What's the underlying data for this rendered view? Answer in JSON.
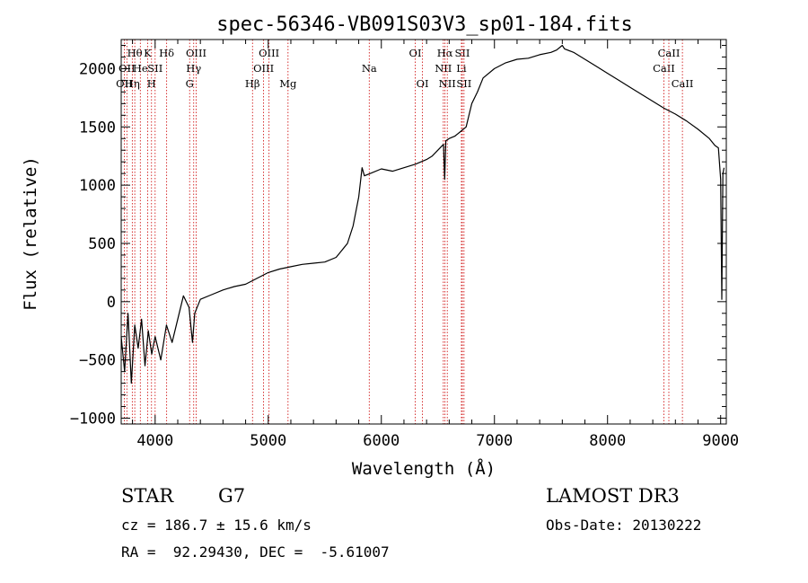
{
  "chart_data": {
    "type": "line",
    "title": "spec-56346-VB091S03V3_sp01-184.fits",
    "xlabel": "Wavelength (Å)",
    "ylabel": "Flux (relative)",
    "xlim": [
      3700,
      9050
    ],
    "ylim": [
      -1050,
      2250
    ],
    "xticks": [
      4000,
      5000,
      6000,
      7000,
      8000,
      9000
    ],
    "xtick_labels": [
      "4000",
      "5000",
      "6000",
      "7000",
      "8000",
      "9000"
    ],
    "yticks": [
      -1000,
      -500,
      0,
      500,
      1000,
      1500,
      2000
    ],
    "ytick_labels": [
      "−1000",
      "−500",
      "0",
      "500",
      "1000",
      "1500",
      "2000"
    ],
    "series": [
      {
        "name": "flux",
        "x": [
          3700,
          3730,
          3760,
          3790,
          3820,
          3850,
          3880,
          3910,
          3940,
          3970,
          4000,
          4050,
          4100,
          4150,
          4200,
          4250,
          4300,
          4330,
          4350,
          4400,
          4500,
          4600,
          4700,
          4800,
          4900,
          5000,
          5100,
          5200,
          5300,
          5400,
          5500,
          5600,
          5700,
          5750,
          5800,
          5830,
          5850,
          5900,
          6000,
          6100,
          6200,
          6300,
          6400,
          6450,
          6500,
          6550,
          6560,
          6570,
          6600,
          6650,
          6700,
          6750,
          6800,
          6850,
          6900,
          7000,
          7100,
          7200,
          7300,
          7400,
          7500,
          7550,
          7600,
          7620,
          7700,
          7800,
          7900,
          8000,
          8100,
          8200,
          8300,
          8400,
          8500,
          8600,
          8700,
          8800,
          8900,
          8950,
          8980,
          9000,
          9010,
          9020,
          9030
        ],
        "y": [
          -300,
          -600,
          -100,
          -700,
          -200,
          -400,
          -150,
          -550,
          -250,
          -450,
          -300,
          -500,
          -200,
          -350,
          -150,
          50,
          -50,
          -350,
          -100,
          20,
          60,
          100,
          130,
          150,
          200,
          250,
          280,
          300,
          320,
          330,
          340,
          380,
          500,
          650,
          900,
          1150,
          1080,
          1100,
          1140,
          1120,
          1150,
          1180,
          1220,
          1250,
          1300,
          1350,
          1050,
          1380,
          1400,
          1420,
          1460,
          1500,
          1700,
          1800,
          1920,
          2000,
          2050,
          2080,
          2090,
          2120,
          2140,
          2160,
          2200,
          2170,
          2140,
          2080,
          2020,
          1960,
          1900,
          1840,
          1780,
          1720,
          1660,
          1610,
          1550,
          1480,
          1400,
          1340,
          1320,
          1050,
          20,
          1100,
          1150
        ]
      }
    ],
    "lines": [
      {
        "wl": 3727,
        "label": "OII",
        "row": 3
      },
      {
        "wl": 3750,
        "label": "OII",
        "row": 2
      },
      {
        "wl": 3798,
        "label": "Hη",
        "row": 3
      },
      {
        "wl": 3820,
        "label": "Hθ",
        "row": 1
      },
      {
        "wl": 3869,
        "label": "He",
        "row": 2
      },
      {
        "wl": 3934,
        "label": "K",
        "row": 1
      },
      {
        "wl": 3968,
        "label": "H",
        "row": 3
      },
      {
        "wl": 4000,
        "label": "SII",
        "row": 2
      },
      {
        "wl": 4102,
        "label": "Hδ",
        "row": 1
      },
      {
        "wl": 4305,
        "label": "G",
        "row": 3
      },
      {
        "wl": 4341,
        "label": "Hγ",
        "row": 2
      },
      {
        "wl": 4363,
        "label": "OIII",
        "row": 1
      },
      {
        "wl": 4861,
        "label": "Hβ",
        "row": 3
      },
      {
        "wl": 4959,
        "label": "OIII",
        "row": 2
      },
      {
        "wl": 5007,
        "label": "OIII",
        "row": 1
      },
      {
        "wl": 5175,
        "label": "Mg",
        "row": 3
      },
      {
        "wl": 5893,
        "label": "Na",
        "row": 2
      },
      {
        "wl": 6300,
        "label": "OI",
        "row": 1
      },
      {
        "wl": 6364,
        "label": "OI",
        "row": 3
      },
      {
        "wl": 6548,
        "label": "NII",
        "row": 2
      },
      {
        "wl": 6563,
        "label": "Hα",
        "row": 1
      },
      {
        "wl": 6583,
        "label": "NII",
        "row": 3
      },
      {
        "wl": 6708,
        "label": "Li",
        "row": 2
      },
      {
        "wl": 6716,
        "label": "SII",
        "row": 1
      },
      {
        "wl": 6731,
        "label": "SII",
        "row": 3
      },
      {
        "wl": 8498,
        "label": "CaII",
        "row": 2
      },
      {
        "wl": 8542,
        "label": "CaII",
        "row": 1
      },
      {
        "wl": 8662,
        "label": "CaII",
        "row": 3
      }
    ]
  },
  "info": {
    "class": "STAR",
    "subclass": "G7",
    "survey": "LAMOST DR3",
    "cz": "cz = 186.7 ± 15.6 km/s",
    "obsdate": "Obs-Date: 20130222",
    "coords": "RA =  92.29430, DEC =  -5.61007"
  },
  "colors": {
    "line_marker": "#cc0000",
    "spectrum": "#000000",
    "axes": "#000000"
  }
}
